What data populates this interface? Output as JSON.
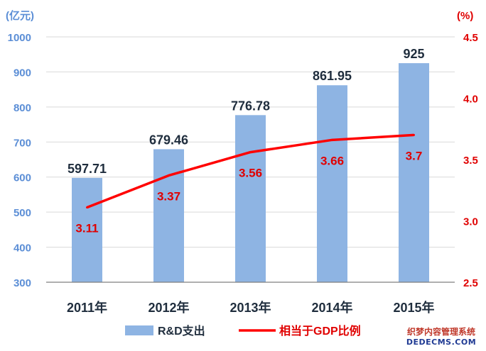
{
  "chart_data": {
    "type": "bar+line",
    "categories": [
      "2011年",
      "2012年",
      "2013年",
      "2014年",
      "2015年"
    ],
    "series": [
      {
        "name": "R&D支出",
        "type": "bar",
        "axis": "left",
        "values": [
          597.71,
          679.46,
          776.78,
          861.95,
          925
        ],
        "labels": [
          "597.71",
          "679.46",
          "776.78",
          "861.95",
          "925"
        ]
      },
      {
        "name": "相当于GDP比例",
        "type": "line",
        "axis": "right",
        "values": [
          3.11,
          3.37,
          3.56,
          3.66,
          3.7
        ],
        "labels": [
          "3.11",
          "3.37",
          "3.56",
          "3.66",
          "3.7"
        ]
      }
    ],
    "y_left": {
      "unit": "(亿元)",
      "ylim": [
        300,
        1000
      ],
      "ticks": [
        "300",
        "400",
        "500",
        "600",
        "700",
        "800",
        "900",
        "1000"
      ],
      "tick_values": [
        300,
        400,
        500,
        600,
        700,
        800,
        900,
        1000
      ]
    },
    "y_right": {
      "unit": "(%)",
      "ylim": [
        2.5,
        4.5
      ],
      "ticks": [
        "2.5",
        "3.0",
        "3.5",
        "4.0",
        "4.5"
      ],
      "tick_values": [
        2.5,
        3.0,
        3.5,
        4.0,
        4.5
      ]
    },
    "grid": true,
    "legend_position": "bottom",
    "colors": {
      "bar": "#8eb4e3",
      "line": "#ff0000",
      "left_axis_text": "#5b8ed6",
      "right_axis_text": "#e00000",
      "grid": "#d9d9d9"
    }
  },
  "watermark": {
    "line1": "织梦内容管理系统",
    "line2": "DEDECMS.COM"
  }
}
